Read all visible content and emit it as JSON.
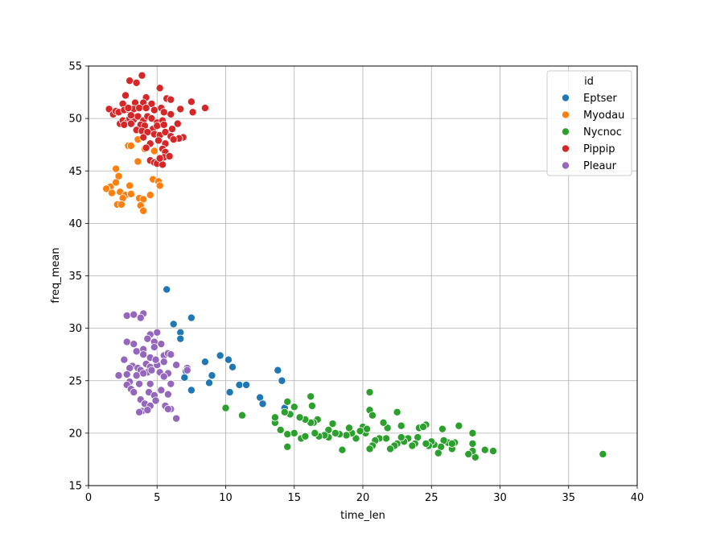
{
  "chart_data": {
    "type": "scatter",
    "title": "",
    "xlabel": "time_len",
    "ylabel": "freq_mean",
    "xlim": [
      0,
      40
    ],
    "ylim": [
      15,
      55
    ],
    "xticks": [
      0,
      5,
      10,
      15,
      20,
      25,
      30,
      35,
      40
    ],
    "yticks": [
      15,
      20,
      25,
      30,
      35,
      40,
      45,
      50,
      55
    ],
    "grid": true,
    "legend": {
      "title": "id",
      "placement": "top-right"
    },
    "series": [
      {
        "name": "Eptser",
        "color": "#1f77b4",
        "points": [
          [
            5.7,
            33.7
          ],
          [
            6.2,
            30.4
          ],
          [
            7.5,
            31.0
          ],
          [
            6.7,
            29.6
          ],
          [
            6.7,
            29.0
          ],
          [
            9.6,
            27.4
          ],
          [
            10.2,
            27.0
          ],
          [
            8.5,
            26.8
          ],
          [
            10.5,
            26.3
          ],
          [
            7.1,
            25.9
          ],
          [
            9.0,
            25.5
          ],
          [
            7.0,
            25.3
          ],
          [
            11.0,
            24.6
          ],
          [
            11.5,
            24.6
          ],
          [
            8.8,
            24.8
          ],
          [
            7.5,
            24.1
          ],
          [
            10.3,
            23.9
          ],
          [
            12.5,
            23.4
          ],
          [
            12.7,
            22.8
          ],
          [
            14.3,
            22.4
          ],
          [
            13.8,
            26.0
          ],
          [
            14.1,
            25.0
          ]
        ]
      },
      {
        "name": "Myodau",
        "color": "#ff7f0e",
        "points": [
          [
            3.6,
            48.0
          ],
          [
            4.1,
            47.1
          ],
          [
            2.9,
            47.4
          ],
          [
            3.1,
            47.4
          ],
          [
            4.8,
            46.9
          ],
          [
            3.6,
            45.9
          ],
          [
            4.7,
            44.2
          ],
          [
            5.1,
            44.0
          ],
          [
            5.2,
            43.6
          ],
          [
            2.0,
            45.2
          ],
          [
            2.2,
            44.5
          ],
          [
            1.6,
            43.5
          ],
          [
            1.3,
            43.3
          ],
          [
            2.3,
            43.0
          ],
          [
            3.0,
            43.6
          ],
          [
            2.7,
            42.7
          ],
          [
            1.7,
            42.9
          ],
          [
            3.7,
            42.4
          ],
          [
            4.0,
            42.3
          ],
          [
            4.5,
            42.7
          ],
          [
            2.5,
            42.4
          ],
          [
            2.1,
            41.8
          ],
          [
            3.8,
            41.7
          ],
          [
            4.0,
            41.2
          ],
          [
            2.0,
            43.9
          ],
          [
            3.1,
            42.8
          ],
          [
            2.4,
            41.8
          ]
        ]
      },
      {
        "name": "Nycnoc",
        "color": "#2ca02c",
        "points": [
          [
            37.5,
            18.0
          ],
          [
            29.5,
            18.3
          ],
          [
            28.9,
            18.4
          ],
          [
            28.2,
            17.7
          ],
          [
            28.0,
            18.3
          ],
          [
            27.7,
            18.0
          ],
          [
            28.0,
            19.0
          ],
          [
            28.0,
            20.0
          ],
          [
            27.0,
            20.7
          ],
          [
            26.5,
            18.5
          ],
          [
            26.7,
            19.1
          ],
          [
            26.2,
            19.1
          ],
          [
            25.9,
            19.3
          ],
          [
            25.7,
            18.7
          ],
          [
            25.5,
            18.1
          ],
          [
            25.2,
            18.9
          ],
          [
            25.0,
            19.2
          ],
          [
            24.8,
            18.8
          ],
          [
            24.6,
            19.0
          ],
          [
            24.6,
            20.8
          ],
          [
            25.8,
            20.4
          ],
          [
            24.1,
            20.5
          ],
          [
            24.4,
            20.6
          ],
          [
            24.0,
            19.6
          ],
          [
            23.8,
            19.0
          ],
          [
            23.6,
            18.8
          ],
          [
            23.3,
            19.5
          ],
          [
            23.0,
            19.2
          ],
          [
            22.8,
            19.6
          ],
          [
            22.5,
            19.0
          ],
          [
            22.3,
            18.8
          ],
          [
            22.0,
            18.5
          ],
          [
            21.8,
            20.5
          ],
          [
            22.5,
            22.0
          ],
          [
            22.8,
            20.7
          ],
          [
            21.5,
            21.0
          ],
          [
            21.7,
            19.5
          ],
          [
            21.2,
            19.5
          ],
          [
            20.9,
            19.3
          ],
          [
            20.7,
            18.8
          ],
          [
            20.5,
            18.5
          ],
          [
            20.2,
            20.0
          ],
          [
            20.0,
            20.6
          ],
          [
            20.3,
            20.4
          ],
          [
            20.5,
            22.2
          ],
          [
            20.7,
            21.7
          ],
          [
            20.5,
            23.9
          ],
          [
            19.8,
            20.2
          ],
          [
            19.5,
            19.5
          ],
          [
            19.2,
            20.0
          ],
          [
            19.0,
            20.5
          ],
          [
            18.8,
            19.8
          ],
          [
            18.5,
            18.4
          ],
          [
            18.3,
            19.9
          ],
          [
            18.0,
            20.0
          ],
          [
            17.5,
            20.3
          ],
          [
            17.8,
            20.9
          ],
          [
            17.5,
            19.6
          ],
          [
            17.2,
            19.8
          ],
          [
            16.8,
            19.7
          ],
          [
            16.5,
            20.0
          ],
          [
            16.7,
            21.3
          ],
          [
            16.4,
            21.0
          ],
          [
            16.2,
            21.0
          ],
          [
            16.3,
            22.6
          ],
          [
            16.2,
            23.5
          ],
          [
            15.8,
            21.3
          ],
          [
            15.5,
            19.5
          ],
          [
            15.8,
            19.7
          ],
          [
            15.0,
            20.0
          ],
          [
            14.5,
            19.9
          ],
          [
            14.7,
            21.8
          ],
          [
            15.0,
            22.5
          ],
          [
            15.4,
            21.5
          ],
          [
            14.5,
            23.0
          ],
          [
            14.3,
            22.0
          ],
          [
            14.0,
            20.3
          ],
          [
            13.6,
            21.0
          ],
          [
            13.6,
            21.5
          ],
          [
            14.5,
            18.7
          ],
          [
            11.2,
            21.7
          ],
          [
            10.0,
            22.4
          ],
          [
            26.5,
            19.0
          ]
        ]
      },
      {
        "name": "Pippip",
        "color": "#d62728",
        "points": [
          [
            3.9,
            54.1
          ],
          [
            3.0,
            53.6
          ],
          [
            3.5,
            53.4
          ],
          [
            5.2,
            52.9
          ],
          [
            2.7,
            52.2
          ],
          [
            4.2,
            52.0
          ],
          [
            5.7,
            51.9
          ],
          [
            6.0,
            51.8
          ],
          [
            7.5,
            51.6
          ],
          [
            2.5,
            51.4
          ],
          [
            3.4,
            51.5
          ],
          [
            4.0,
            51.5
          ],
          [
            4.6,
            51.4
          ],
          [
            5.3,
            51.0
          ],
          [
            6.7,
            50.9
          ],
          [
            8.5,
            51.0
          ],
          [
            7.6,
            50.6
          ],
          [
            1.5,
            50.9
          ],
          [
            1.8,
            50.4
          ],
          [
            2.0,
            50.7
          ],
          [
            2.2,
            50.6
          ],
          [
            2.6,
            50.8
          ],
          [
            3.0,
            50.8
          ],
          [
            3.3,
            50.9
          ],
          [
            3.7,
            51.0
          ],
          [
            4.2,
            51.0
          ],
          [
            4.8,
            50.8
          ],
          [
            5.5,
            50.6
          ],
          [
            6.0,
            50.4
          ],
          [
            2.3,
            49.5
          ],
          [
            2.5,
            49.8
          ],
          [
            2.8,
            49.6
          ],
          [
            3.0,
            50.0
          ],
          [
            3.3,
            49.9
          ],
          [
            3.6,
            50.2
          ],
          [
            4.0,
            49.8
          ],
          [
            4.3,
            50.2
          ],
          [
            4.6,
            50.0
          ],
          [
            5.0,
            49.6
          ],
          [
            5.4,
            49.8
          ],
          [
            2.6,
            49.4
          ],
          [
            3.1,
            49.5
          ],
          [
            3.8,
            49.4
          ],
          [
            4.1,
            49.3
          ],
          [
            4.7,
            49.0
          ],
          [
            5.0,
            49.3
          ],
          [
            5.5,
            49.4
          ],
          [
            6.1,
            49.0
          ],
          [
            6.5,
            49.5
          ],
          [
            3.5,
            48.9
          ],
          [
            3.9,
            48.8
          ],
          [
            4.3,
            48.7
          ],
          [
            4.8,
            48.5
          ],
          [
            5.2,
            48.4
          ],
          [
            5.6,
            48.7
          ],
          [
            6.0,
            48.3
          ],
          [
            6.9,
            48.2
          ],
          [
            6.6,
            48.1
          ],
          [
            4.0,
            48.2
          ],
          [
            4.5,
            47.6
          ],
          [
            5.1,
            47.9
          ],
          [
            5.6,
            47.6
          ],
          [
            6.2,
            48.0
          ],
          [
            4.2,
            47.2
          ],
          [
            5.4,
            47.1
          ],
          [
            5.6,
            46.8
          ],
          [
            5.5,
            46.3
          ],
          [
            5.9,
            46.4
          ],
          [
            4.5,
            46.0
          ],
          [
            4.8,
            45.8
          ],
          [
            5.0,
            45.7
          ],
          [
            5.4,
            45.6
          ],
          [
            5.2,
            46.2
          ],
          [
            3.1,
            50.3
          ],
          [
            2.9,
            51.0
          ]
        ]
      },
      {
        "name": "Pleaur",
        "color": "#9467bd",
        "points": [
          [
            2.8,
            31.2
          ],
          [
            3.3,
            31.3
          ],
          [
            4.0,
            31.4
          ],
          [
            3.8,
            31.0
          ],
          [
            5.0,
            29.6
          ],
          [
            4.5,
            29.4
          ],
          [
            4.3,
            29.0
          ],
          [
            4.8,
            28.7
          ],
          [
            5.3,
            28.5
          ],
          [
            2.8,
            28.7
          ],
          [
            3.3,
            28.5
          ],
          [
            4.0,
            28.0
          ],
          [
            4.8,
            28.2
          ],
          [
            3.5,
            27.8
          ],
          [
            5.5,
            27.4
          ],
          [
            4.0,
            27.5
          ],
          [
            4.5,
            27.2
          ],
          [
            5.8,
            27.6
          ],
          [
            6.0,
            27.5
          ],
          [
            2.6,
            27.0
          ],
          [
            3.2,
            26.4
          ],
          [
            3.6,
            26.2
          ],
          [
            4.2,
            26.6
          ],
          [
            4.5,
            26.3
          ],
          [
            5.0,
            26.5
          ],
          [
            5.5,
            26.8
          ],
          [
            6.4,
            26.5
          ],
          [
            7.2,
            26.2
          ],
          [
            3.0,
            26.2
          ],
          [
            3.8,
            26.0
          ],
          [
            4.3,
            25.8
          ],
          [
            4.6,
            26.0
          ],
          [
            5.2,
            25.8
          ],
          [
            5.8,
            25.7
          ],
          [
            7.2,
            26.0
          ],
          [
            2.2,
            25.5
          ],
          [
            2.8,
            25.6
          ],
          [
            3.5,
            25.5
          ],
          [
            4.0,
            25.7
          ],
          [
            5.5,
            25.4
          ],
          [
            3.0,
            24.9
          ],
          [
            3.7,
            24.7
          ],
          [
            4.5,
            24.7
          ],
          [
            6.0,
            24.7
          ],
          [
            2.8,
            24.6
          ],
          [
            3.1,
            24.2
          ],
          [
            3.3,
            23.9
          ],
          [
            4.4,
            23.9
          ],
          [
            4.8,
            23.6
          ],
          [
            5.3,
            24.1
          ],
          [
            5.8,
            23.7
          ],
          [
            3.8,
            23.2
          ],
          [
            4.1,
            22.8
          ],
          [
            4.9,
            23.1
          ],
          [
            5.6,
            22.6
          ],
          [
            4.5,
            22.6
          ],
          [
            3.9,
            22.1
          ],
          [
            4.3,
            22.2
          ],
          [
            6.0,
            22.3
          ],
          [
            3.7,
            22.0
          ],
          [
            5.8,
            22.3
          ],
          [
            6.4,
            21.4
          ],
          [
            4.9,
            27.0
          ]
        ]
      }
    ]
  }
}
